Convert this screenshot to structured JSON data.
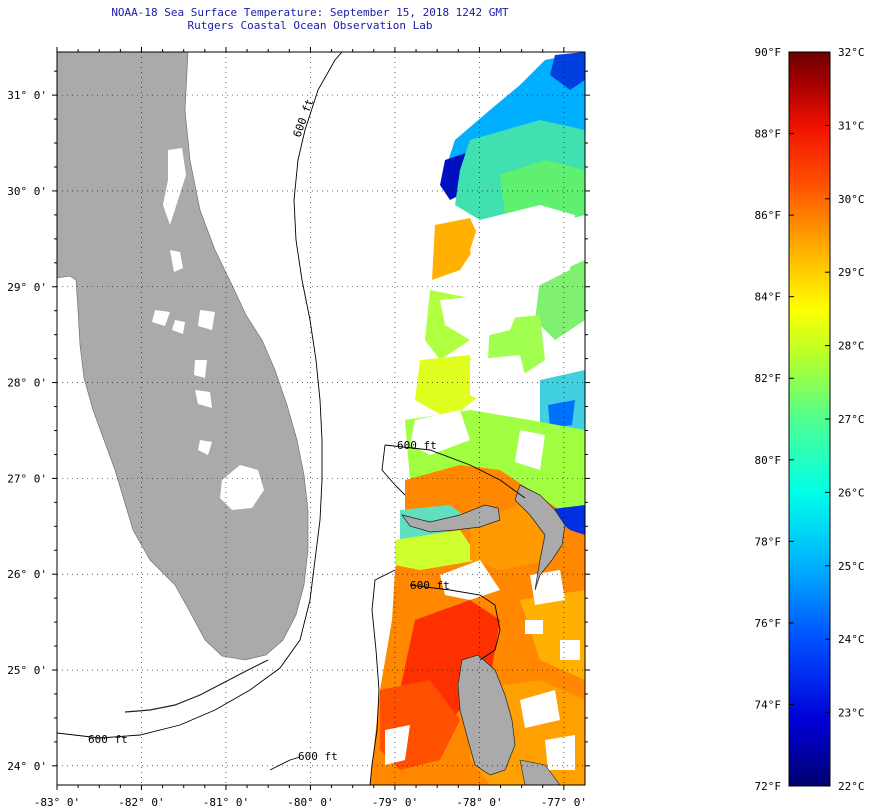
{
  "title": "NOAA-18 Sea Surface Temperature:  September 15, 2018 1242 GMT",
  "subtitle": "Rutgers Coastal Ocean Observation Lab",
  "map": {
    "lon_range": [
      -83,
      -76.75
    ],
    "lat_range": [
      23.8,
      31.45
    ],
    "lon_ticks": [
      "-83° 0'",
      "-82° 0'",
      "-81° 0'",
      "-80° 0'",
      "-79° 0'",
      "-78° 0'",
      "-77° 0'"
    ],
    "lat_ticks": [
      "31° 0'",
      "30° 0'",
      "29° 0'",
      "28° 0'",
      "27° 0'",
      "26° 0'",
      "25° 0'",
      "24° 0'"
    ],
    "contour_label": "600 ft",
    "grid": "dotted",
    "land_color": "#aaaaaa"
  },
  "colorbar": {
    "fahrenheit_labels": [
      "90°F",
      "88°F",
      "86°F",
      "84°F",
      "82°F",
      "80°F",
      "78°F",
      "76°F",
      "74°F",
      "72°F"
    ],
    "celsius_labels": [
      "32°C",
      "31°C",
      "30°C",
      "29°C",
      "28°C",
      "27°C",
      "26°C",
      "25°C",
      "24°C",
      "23°C",
      "22°C"
    ],
    "range_f": [
      72,
      90
    ],
    "range_c": [
      22,
      32
    ],
    "colors": [
      "#00006e",
      "#0000d8",
      "#0050ff",
      "#00b0ff",
      "#00ffe8",
      "#50ff90",
      "#b0ff30",
      "#ffff00",
      "#ffb000",
      "#ff5000",
      "#f01000",
      "#a00000",
      "#6e0000"
    ]
  }
}
